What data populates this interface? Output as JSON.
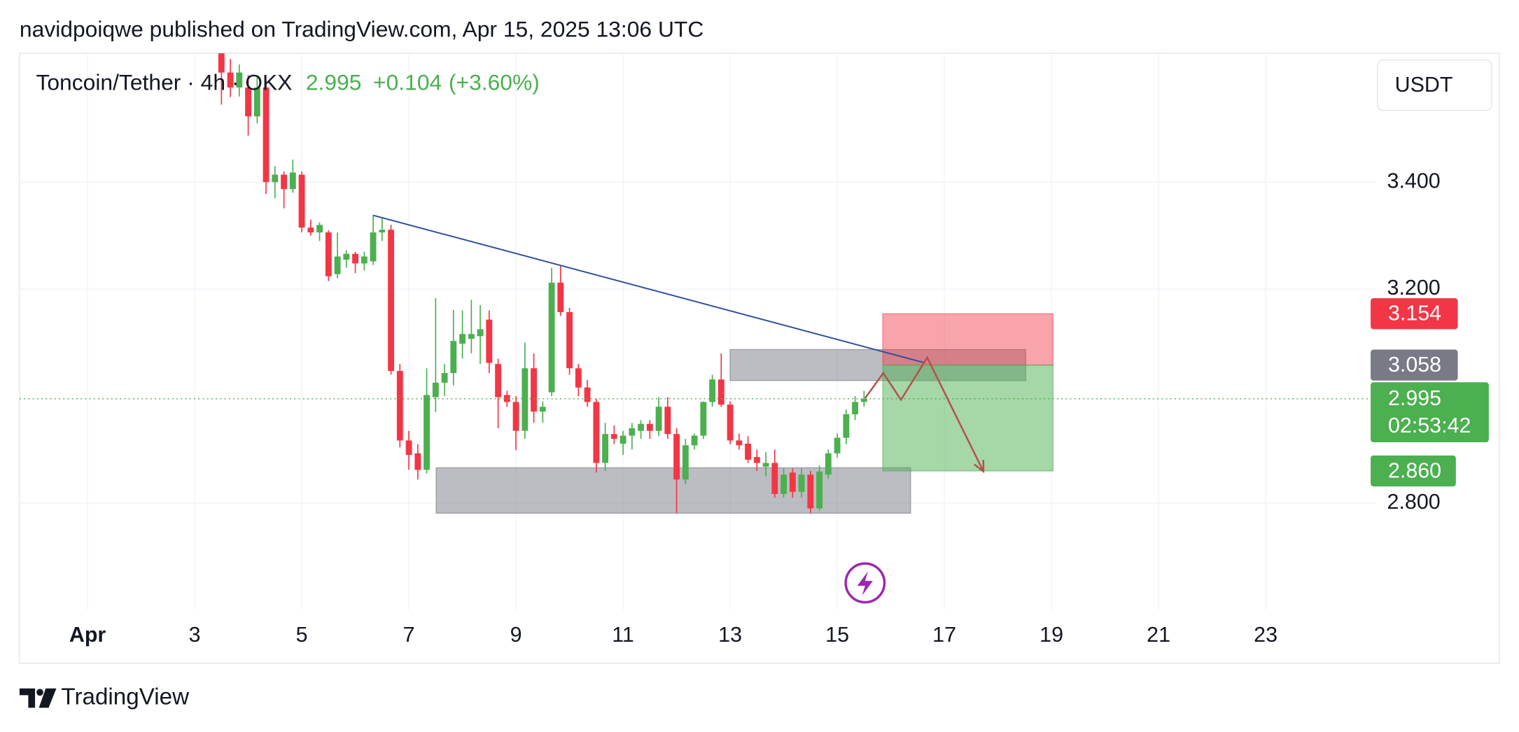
{
  "header": {
    "published": "navidpoiqwe published on TradingView.com, Apr 15, 2025 13:06 UTC",
    "brand": "TradingView"
  },
  "chart_data": {
    "type": "candlestick",
    "title": "Toncoin/Tether · 4h · OKX",
    "last_price": 2.995,
    "change": {
      "value": 0.104,
      "label": "+0.104"
    },
    "change_pct": {
      "value": 3.6,
      "label": "(+3.60%)"
    },
    "currency": "USDT",
    "countdown": "02:53:42",
    "x": [
      3.5,
      3.667,
      3.833,
      4,
      4.167,
      4.333,
      4.5,
      4.667,
      4.833,
      5,
      5.167,
      5.333,
      5.5,
      5.667,
      5.833,
      6,
      6.167,
      6.333,
      6.5,
      6.667,
      6.833,
      7,
      7.167,
      7.333,
      7.5,
      7.667,
      7.833,
      8,
      8.167,
      8.333,
      8.5,
      8.667,
      8.833,
      9,
      9.167,
      9.333,
      9.5,
      9.667,
      9.833,
      10,
      10.167,
      10.333,
      10.5,
      10.667,
      10.833,
      11,
      11.167,
      11.333,
      11.5,
      11.667,
      11.833,
      12,
      12.167,
      12.333,
      12.5,
      12.667,
      12.833,
      13,
      13.167,
      13.333,
      13.5,
      13.667,
      13.833,
      14,
      14.167,
      14.333,
      14.5,
      14.667,
      14.833,
      15,
      15.167,
      15.333,
      15.5
    ],
    "open": [
      3.641,
      3.605,
      3.577,
      3.577,
      3.523,
      3.577,
      3.4,
      3.414,
      3.387,
      3.414,
      3.315,
      3.306,
      3.306,
      3.228,
      3.255,
      3.266,
      3.248,
      3.252,
      3.306,
      3.311,
      3.047,
      2.917,
      2.893,
      2.862,
      2.998,
      3.025,
      3.043,
      3.098,
      3.107,
      3.112,
      3.143,
      3.06,
      3.002,
      2.989,
      2.935,
      3.052,
      2.971,
      3.007,
      3.212,
      3.157,
      3.052,
      3.016,
      2.989,
      2.875,
      2.929,
      2.911,
      2.926,
      2.935,
      2.948,
      2.935,
      2.98,
      2.929,
      2.844,
      2.908,
      2.926,
      2.989,
      3.031,
      2.984,
      2.917,
      2.911,
      2.886,
      2.868,
      2.875,
      2.817,
      2.857,
      2.821,
      2.853,
      2.79,
      2.853,
      2.893,
      2.922,
      2.966,
      2.989
    ],
    "high": [
      3.66,
      3.63,
      3.62,
      3.6,
      3.6,
      3.59,
      3.43,
      3.42,
      3.442,
      3.42,
      3.33,
      3.325,
      3.31,
      3.306,
      3.273,
      3.27,
      3.27,
      3.338,
      3.333,
      3.32,
      3.06,
      2.935,
      2.91,
      3.052,
      3.183,
      3.06,
      3.161,
      3.16,
      3.18,
      3.17,
      3.16,
      3.07,
      3.01,
      3.0,
      3.1,
      3.08,
      2.99,
      3.24,
      3.243,
      3.165,
      3.06,
      3.03,
      2.995,
      2.95,
      2.945,
      2.935,
      2.95,
      2.955,
      2.955,
      2.998,
      2.998,
      2.94,
      2.92,
      2.93,
      2.99,
      3.04,
      3.08,
      2.99,
      2.93,
      2.925,
      2.9,
      2.895,
      2.9,
      2.865,
      2.865,
      2.865,
      2.86,
      2.87,
      2.9,
      2.93,
      2.975,
      3.0,
      3.01
    ],
    "low": [
      3.545,
      3.559,
      3.56,
      3.487,
      3.51,
      3.378,
      3.37,
      3.351,
      3.38,
      3.306,
      3.3,
      3.29,
      3.215,
      3.22,
      3.24,
      3.23,
      3.235,
      3.245,
      3.29,
      3.04,
      2.904,
      2.862,
      2.844,
      2.855,
      2.97,
      3.0,
      3.02,
      3.07,
      3.08,
      3.06,
      3.043,
      2.94,
      2.98,
      2.899,
      2.92,
      2.95,
      2.95,
      3.0,
      3.15,
      3.04,
      3.0,
      2.98,
      2.857,
      2.86,
      2.91,
      2.89,
      2.9,
      2.92,
      2.92,
      2.925,
      2.92,
      2.781,
      2.835,
      2.9,
      2.92,
      2.98,
      2.98,
      2.91,
      2.9,
      2.875,
      2.86,
      2.85,
      2.81,
      2.81,
      2.81,
      2.81,
      2.781,
      2.785,
      2.845,
      2.885,
      2.91,
      2.955,
      2.98
    ],
    "close": [
      3.605,
      3.577,
      3.605,
      3.523,
      3.577,
      3.4,
      3.414,
      3.387,
      3.418,
      3.315,
      3.306,
      3.32,
      3.224,
      3.261,
      3.266,
      3.248,
      3.261,
      3.306,
      3.311,
      3.047,
      2.917,
      2.89,
      2.862,
      3.002,
      3.025,
      3.043,
      3.103,
      3.116,
      3.116,
      3.125,
      3.062,
      2.998,
      2.989,
      2.935,
      3.052,
      2.971,
      2.98,
      3.212,
      3.157,
      3.052,
      3.016,
      2.989,
      2.875,
      2.929,
      2.92,
      2.926,
      2.94,
      2.948,
      2.935,
      2.98,
      2.929,
      2.844,
      2.908,
      2.926,
      2.989,
      3.031,
      2.984,
      2.917,
      2.908,
      2.881,
      2.875,
      2.875,
      2.817,
      2.853,
      2.821,
      2.853,
      2.79,
      2.859,
      2.893,
      2.922,
      2.966,
      2.989,
      2.995
    ],
    "up_color": "#4caf50",
    "down_color": "#f23645",
    "xlim": [
      -0.27,
      24.87
    ],
    "xticks": [
      {
        "value": 1,
        "label": "Apr"
      },
      3,
      5,
      7,
      9,
      11,
      13,
      15,
      17,
      19,
      21,
      23
    ],
    "ylim": [
      2.6,
      3.641
    ],
    "yticks": [
      {
        "value": 2.8,
        "label": "2.800"
      },
      {
        "value": 3.2,
        "label": "3.200"
      },
      {
        "value": 3.4,
        "label": "3.400"
      }
    ],
    "grid": true,
    "trendline": {
      "x": [
        6.333,
        16.64
      ],
      "y": [
        3.338,
        3.062
      ],
      "color": "#2a4e9c"
    },
    "zones": [
      {
        "x": [
          13,
          18.52
        ],
        "y": [
          3.029,
          3.087
        ]
      },
      {
        "x": [
          7.51,
          16.37
        ],
        "y": [
          2.781,
          2.866
        ]
      }
    ],
    "position": {
      "x": [
        15.85,
        19.03
      ],
      "entry": {
        "value": 3.058,
        "label": "3.058"
      },
      "stop": {
        "value": 3.154,
        "label": "3.154"
      },
      "target": {
        "value": 2.86,
        "label": "2.860"
      }
    },
    "projection": {
      "x": [
        15.52,
        15.86,
        16.19,
        16.68,
        17.73
      ],
      "y": [
        2.996,
        3.043,
        2.993,
        3.072,
        2.859
      ],
      "color": "#b5514b"
    }
  }
}
